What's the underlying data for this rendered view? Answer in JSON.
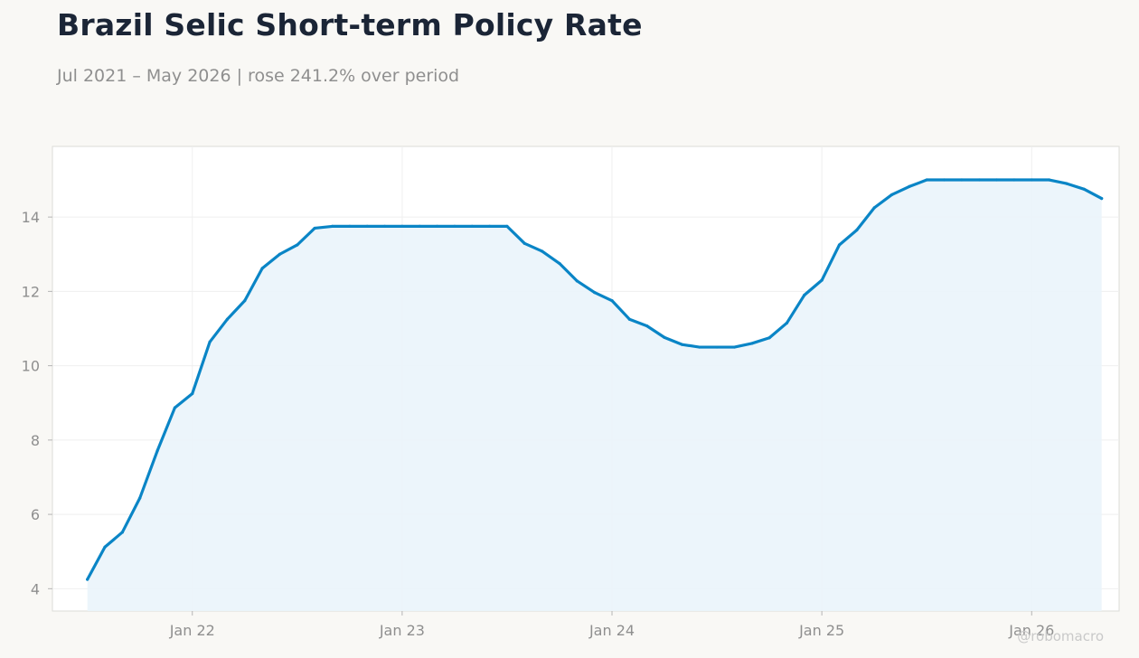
{
  "title": "Brazil Selic Short-term Policy Rate",
  "subtitle": "Jul 2021 – May 2026 | rose 241.2% over period",
  "watermark": "@robomacro",
  "colors": {
    "line": "#0a85c6",
    "fill": "#eaf4fb",
    "plot_background": "#ffffff",
    "page_background": "#f9f8f5"
  },
  "chart_data": {
    "type": "area",
    "title": "Brazil Selic Short-term Policy Rate",
    "subtitle": "Jul 2021 – May 2026 | rose 241.2% over period",
    "xlabel": "",
    "ylabel": "",
    "grid": true,
    "legend": "none",
    "xlim": [
      "2021-05-01",
      "2026-06-01"
    ],
    "ylim": [
      3.4,
      15.9
    ],
    "x_ticks": [
      {
        "date": "2022-01-01",
        "label": "Jan 22"
      },
      {
        "date": "2023-01-01",
        "label": "Jan 23"
      },
      {
        "date": "2024-01-01",
        "label": "Jan 24"
      },
      {
        "date": "2025-01-01",
        "label": "Jan 25"
      },
      {
        "date": "2026-01-01",
        "label": "Jan 26"
      }
    ],
    "y_ticks": [
      4,
      6,
      8,
      10,
      12,
      14
    ],
    "series": [
      {
        "points": [
          [
            "2021-07",
            4.25
          ],
          [
            "2021-08",
            5.12
          ],
          [
            "2021-09",
            5.52
          ],
          [
            "2021-10",
            6.44
          ],
          [
            "2021-11",
            7.71
          ],
          [
            "2021-12",
            8.87
          ],
          [
            "2022-01",
            9.25
          ],
          [
            "2022-02",
            10.64
          ],
          [
            "2022-03",
            11.25
          ],
          [
            "2022-04",
            11.75
          ],
          [
            "2022-05",
            12.62
          ],
          [
            "2022-06",
            13.0
          ],
          [
            "2022-07",
            13.25
          ],
          [
            "2022-08",
            13.7
          ],
          [
            "2022-09",
            13.75
          ],
          [
            "2022-10",
            13.75
          ],
          [
            "2022-11",
            13.75
          ],
          [
            "2022-12",
            13.75
          ],
          [
            "2023-01",
            13.75
          ],
          [
            "2023-02",
            13.75
          ],
          [
            "2023-03",
            13.75
          ],
          [
            "2023-04",
            13.75
          ],
          [
            "2023-05",
            13.75
          ],
          [
            "2023-06",
            13.75
          ],
          [
            "2023-07",
            13.75
          ],
          [
            "2023-08",
            13.29
          ],
          [
            "2023-09",
            13.08
          ],
          [
            "2023-10",
            12.75
          ],
          [
            "2023-11",
            12.28
          ],
          [
            "2023-12",
            11.97
          ],
          [
            "2024-01",
            11.75
          ],
          [
            "2024-02",
            11.25
          ],
          [
            "2024-03",
            11.07
          ],
          [
            "2024-04",
            10.76
          ],
          [
            "2024-05",
            10.57
          ],
          [
            "2024-06",
            10.5
          ],
          [
            "2024-07",
            10.5
          ],
          [
            "2024-08",
            10.5
          ],
          [
            "2024-09",
            10.6
          ],
          [
            "2024-10",
            10.75
          ],
          [
            "2024-11",
            11.15
          ],
          [
            "2024-12",
            11.9
          ],
          [
            "2025-01",
            12.3
          ],
          [
            "2025-02",
            13.25
          ],
          [
            "2025-03",
            13.65
          ],
          [
            "2025-04",
            14.25
          ],
          [
            "2025-05",
            14.6
          ],
          [
            "2025-06",
            14.82
          ],
          [
            "2025-07",
            15.0
          ],
          [
            "2025-08",
            15.0
          ],
          [
            "2025-09",
            15.0
          ],
          [
            "2025-10",
            15.0
          ],
          [
            "2025-11",
            15.0
          ],
          [
            "2025-12",
            15.0
          ],
          [
            "2026-01",
            15.0
          ],
          [
            "2026-02",
            15.0
          ],
          [
            "2026-03",
            14.9
          ],
          [
            "2026-04",
            14.75
          ],
          [
            "2026-05",
            14.5
          ]
        ]
      }
    ]
  }
}
